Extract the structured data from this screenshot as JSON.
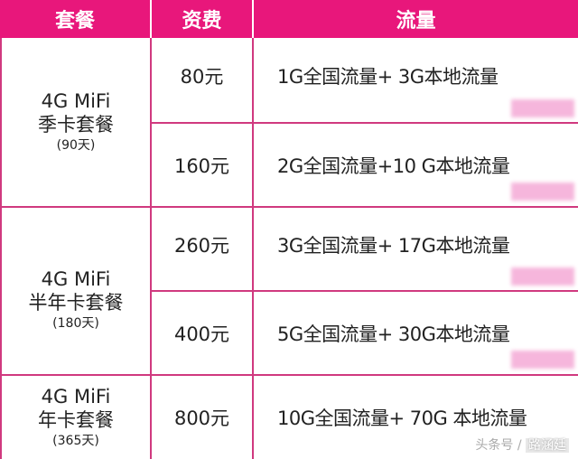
{
  "header": {
    "plan": "套餐",
    "price": "资费",
    "data": "流量"
  },
  "groups": [
    {
      "name": "4G MiFi",
      "type": "季卡套餐",
      "days": "(90天)"
    },
    {
      "name": "4G MiFi",
      "type": "半年卡套餐",
      "days": "(180天)"
    },
    {
      "name": "4G MiFi",
      "type": "年卡套餐",
      "days": "(365天)"
    }
  ],
  "rows": [
    {
      "price": "80元",
      "data": "1G全国流量+ 3G本地流量"
    },
    {
      "price": "160元",
      "data": "2G全国流量+10 G本地流量"
    },
    {
      "price": "260元",
      "data": "3G全国流量+ 17G本地流量"
    },
    {
      "price": "400元",
      "data": "5G全国流量+ 30G本地流量"
    },
    {
      "price": "800元",
      "data": "10G全国流量+ 70G 本地流量"
    }
  ],
  "watermark": {
    "source": "头条号 /",
    "author": "路涵廷"
  },
  "colors": {
    "accent": "#e8177b"
  }
}
